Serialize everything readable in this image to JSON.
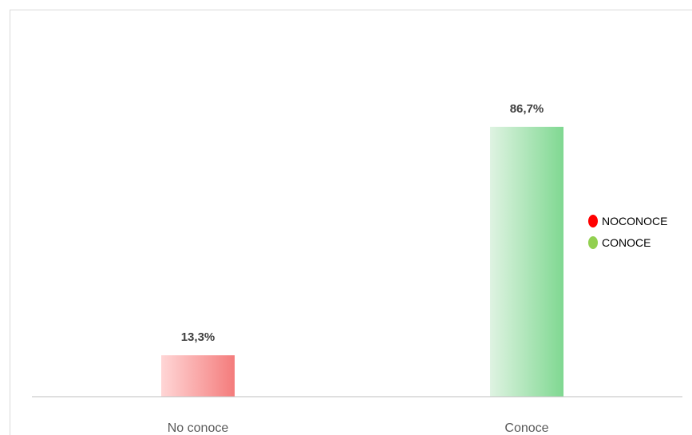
{
  "chart_data": {
    "type": "bar",
    "categories": [
      "No conoce",
      "Conoce"
    ],
    "values": [
      13.3,
      86.7
    ],
    "value_labels": [
      "13,3%",
      "86,7%"
    ],
    "unit": "%",
    "ylim": [
      0,
      100
    ],
    "grid": false,
    "legend": {
      "placement": "right",
      "entries": [
        {
          "label": "NOCONOCE",
          "color": "#ff0000"
        },
        {
          "label": "CONOCE",
          "color": "#92d050"
        }
      ]
    },
    "bar_colors": [
      {
        "light": "#ffd6d6",
        "dark": "#f47c7c"
      },
      {
        "light": "#dff3e2",
        "dark": "#7fd891"
      }
    ],
    "axis_color": "#bfbfbf"
  }
}
